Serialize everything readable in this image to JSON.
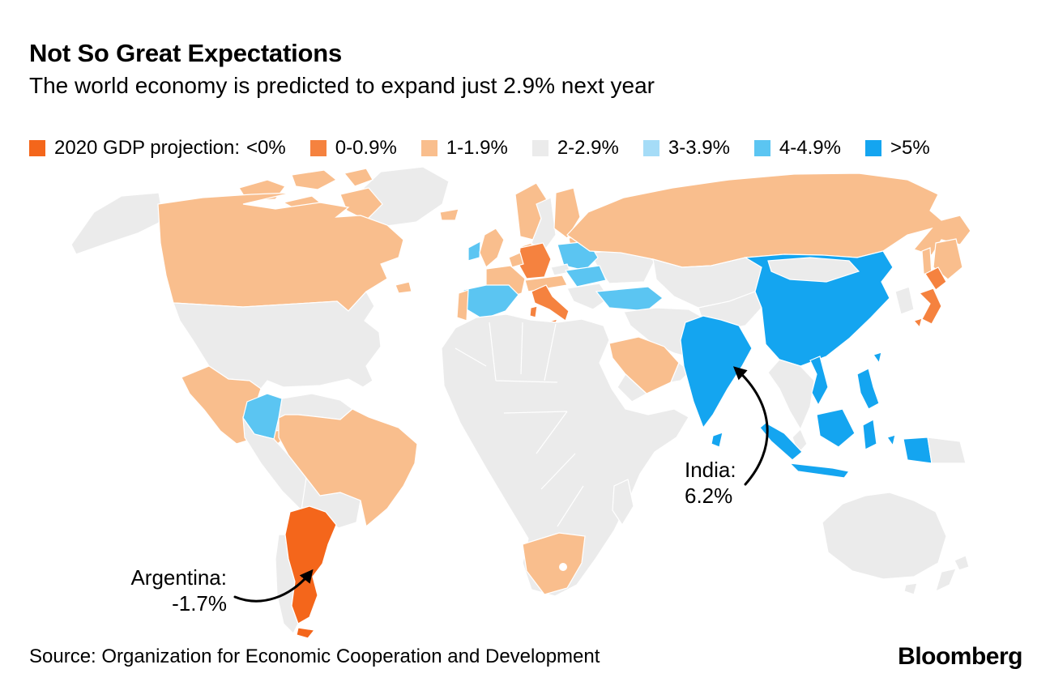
{
  "header": {
    "title": "Not So Great Expectations",
    "subtitle": "The world economy is predicted to expand just 2.9% next year"
  },
  "legend": {
    "prefix": "2020 GDP projection:",
    "items": [
      {
        "label": "<0%",
        "color": "#F4661B"
      },
      {
        "label": "0-0.9%",
        "color": "#F5823F"
      },
      {
        "label": "1-1.9%",
        "color": "#F9BE8D"
      },
      {
        "label": "2-2.9%",
        "color": "#EBEBEB"
      },
      {
        "label": "3-3.9%",
        "color": "#A5DCF7"
      },
      {
        "label": "4-4.9%",
        "color": "#5BC5F2"
      },
      {
        "label": ">5%",
        "color": "#14A5F0"
      }
    ]
  },
  "map": {
    "ocean_color": "#FFFFFF",
    "land_default_color": "#EBEBEB",
    "countries": [
      {
        "id": "argentina",
        "name": "Argentina",
        "category": "<0%"
      },
      {
        "id": "tierra-del-fuego",
        "name": "Tierra del Fuego",
        "category": "<0%"
      },
      {
        "id": "germany",
        "name": "Germany",
        "category": "0-0.9%"
      },
      {
        "id": "italy",
        "name": "Italy",
        "category": "0-0.9%"
      },
      {
        "id": "sicily",
        "name": "Sicily",
        "category": "0-0.9%"
      },
      {
        "id": "sardinia",
        "name": "Sardinia",
        "category": "0-0.9%"
      },
      {
        "id": "japan-north",
        "name": "Japan",
        "category": "0-0.9%"
      },
      {
        "id": "japan-main",
        "name": "Japan",
        "category": "0-0.9%"
      },
      {
        "id": "japan-south",
        "name": "Japan",
        "category": "0-0.9%"
      },
      {
        "id": "canada",
        "name": "Canada",
        "category": "1-1.9%"
      },
      {
        "id": "canada-arctic-1",
        "name": "Canadian Arctic",
        "category": "1-1.9%"
      },
      {
        "id": "canada-arctic-2",
        "name": "Canadian Arctic",
        "category": "1-1.9%"
      },
      {
        "id": "canada-arctic-3",
        "name": "Canadian Arctic",
        "category": "1-1.9%"
      },
      {
        "id": "canada-arctic-4",
        "name": "Canadian Arctic",
        "category": "1-1.9%"
      },
      {
        "id": "canada-arctic-5",
        "name": "Baffin Island",
        "category": "1-1.9%"
      },
      {
        "id": "newfoundland",
        "name": "Newfoundland",
        "category": "1-1.9%"
      },
      {
        "id": "mexico",
        "name": "Mexico",
        "category": "1-1.9%"
      },
      {
        "id": "brazil",
        "name": "Brazil",
        "category": "1-1.9%"
      },
      {
        "id": "russia",
        "name": "Russia",
        "category": "1-1.9%"
      },
      {
        "id": "russia-fareast",
        "name": "Russian Far East",
        "category": "1-1.9%"
      },
      {
        "id": "sakhalin",
        "name": "Sakhalin",
        "category": "1-1.9%"
      },
      {
        "id": "uk",
        "name": "United Kingdom",
        "category": "1-1.9%"
      },
      {
        "id": "france",
        "name": "France",
        "category": "1-1.9%"
      },
      {
        "id": "portugal",
        "name": "Portugal",
        "category": "1-1.9%"
      },
      {
        "id": "norway",
        "name": "Norway",
        "category": "1-1.9%"
      },
      {
        "id": "finland",
        "name": "Finland",
        "category": "1-1.9%"
      },
      {
        "id": "denmark",
        "name": "Denmark",
        "category": "1-1.9%"
      },
      {
        "id": "iceland",
        "name": "Iceland",
        "category": "1-1.9%"
      },
      {
        "id": "benelux",
        "name": "Netherlands & Belgium",
        "category": "1-1.9%"
      },
      {
        "id": "alpine",
        "name": "Switzerland & Austria",
        "category": "1-1.9%"
      },
      {
        "id": "baltics",
        "name": "Baltic states",
        "category": "1-1.9%"
      },
      {
        "id": "saudi-arabia",
        "name": "Saudi Arabia",
        "category": "1-1.9%"
      },
      {
        "id": "south-africa",
        "name": "South Africa",
        "category": "1-1.9%"
      },
      {
        "id": "usa",
        "name": "United States",
        "category": "2-2.9%"
      },
      {
        "id": "alaska",
        "name": "Alaska",
        "category": "2-2.9%"
      },
      {
        "id": "greenland",
        "name": "Greenland",
        "category": "2-2.9%"
      },
      {
        "id": "sweden",
        "name": "Sweden",
        "category": "2-2.9%"
      },
      {
        "id": "czech",
        "name": "Czech Republic",
        "category": "2-2.9%"
      },
      {
        "id": "balkans",
        "name": "Balkans & Greece",
        "category": "2-2.9%"
      },
      {
        "id": "ukraine",
        "name": "Ukraine & Eastern Europe",
        "category": "2-2.9%"
      },
      {
        "id": "central-america",
        "name": "Central America",
        "category": "2-2.9%"
      },
      {
        "id": "cuba",
        "name": "Cuba",
        "category": "2-2.9%"
      },
      {
        "id": "hispaniola",
        "name": "Hispaniola",
        "category": "2-2.9%"
      },
      {
        "id": "venezuela",
        "name": "Venezuela & Guianas",
        "category": "2-2.9%"
      },
      {
        "id": "peru",
        "name": "Ecuador & Peru",
        "category": "2-2.9%"
      },
      {
        "id": "bolivia",
        "name": "Bolivia & Paraguay",
        "category": "2-2.9%"
      },
      {
        "id": "chile",
        "name": "Chile",
        "category": "2-2.9%"
      },
      {
        "id": "africa",
        "name": "Africa (most)",
        "category": "2-2.9%"
      },
      {
        "id": "madagascar",
        "name": "Madagascar",
        "category": "2-2.9%"
      },
      {
        "id": "kazakhstan",
        "name": "Kazakhstan & Central Asia",
        "category": "2-2.9%"
      },
      {
        "id": "middle-east",
        "name": "Middle East",
        "category": "2-2.9%"
      },
      {
        "id": "oman",
        "name": "Oman",
        "category": "2-2.9%"
      },
      {
        "id": "yemen",
        "name": "Yemen",
        "category": "2-2.9%"
      },
      {
        "id": "afghanistan",
        "name": "Afghanistan & Pakistan",
        "category": "2-2.9%"
      },
      {
        "id": "mongolia",
        "name": "Mongolia",
        "category": "2-2.9%"
      },
      {
        "id": "korea",
        "name": "South Korea",
        "category": "2-2.9%"
      },
      {
        "id": "indochina",
        "name": "Myanmar & Thailand",
        "category": "2-2.9%"
      },
      {
        "id": "malay",
        "name": "Malay Peninsula",
        "category": "2-2.9%"
      },
      {
        "id": "png",
        "name": "Papua New Guinea",
        "category": "2-2.9%"
      },
      {
        "id": "australia",
        "name": "Australia",
        "category": "2-2.9%"
      },
      {
        "id": "tasmania",
        "name": "Tasmania",
        "category": "2-2.9%"
      },
      {
        "id": "nz-north",
        "name": "New Zealand",
        "category": "2-2.9%"
      },
      {
        "id": "nz-south",
        "name": "New Zealand",
        "category": "2-2.9%"
      },
      {
        "id": "spain",
        "name": "Spain",
        "category": "4-4.9%"
      },
      {
        "id": "ireland",
        "name": "Ireland",
        "category": "4-4.9%"
      },
      {
        "id": "poland",
        "name": "Poland",
        "category": "4-4.9%"
      },
      {
        "id": "hungary",
        "name": "Hungary & Slovakia",
        "category": "4-4.9%"
      },
      {
        "id": "turkey",
        "name": "Turkey",
        "category": "4-4.9%"
      },
      {
        "id": "colombia",
        "name": "Colombia",
        "category": "4-4.9%"
      },
      {
        "id": "china",
        "name": "China",
        "category": ">5%"
      },
      {
        "id": "taiwan",
        "name": "Taiwan",
        "category": ">5%"
      },
      {
        "id": "india",
        "name": "India",
        "category": ">5%"
      },
      {
        "id": "sri-lanka",
        "name": "Sri Lanka",
        "category": ">5%"
      },
      {
        "id": "vietnam",
        "name": "Vietnam",
        "category": ">5%"
      },
      {
        "id": "sumatra",
        "name": "Indonesia (Sumatra)",
        "category": ">5%"
      },
      {
        "id": "java",
        "name": "Indonesia (Java)",
        "category": ">5%"
      },
      {
        "id": "borneo",
        "name": "Indonesia (Borneo)",
        "category": ">5%"
      },
      {
        "id": "sulawesi",
        "name": "Indonesia (Sulawesi)",
        "category": ">5%"
      },
      {
        "id": "moluccas",
        "name": "Indonesia (Moluccas)",
        "category": ">5%"
      },
      {
        "id": "west-papua",
        "name": "Indonesia (West Papua)",
        "category": ">5%"
      },
      {
        "id": "philippines",
        "name": "Philippines",
        "category": ">5%"
      }
    ]
  },
  "annotations": {
    "argentina": {
      "line1": "Argentina:",
      "line2": "-1.7%"
    },
    "india": {
      "line1": "India:",
      "line2": "6.2%"
    }
  },
  "footer": {
    "source": "Source: Organization for Economic Cooperation and Development",
    "brand": "Bloomberg"
  },
  "chart_data": {
    "type": "heatmap",
    "subtype": "choropleth-world-map",
    "title": "Not So Great Expectations",
    "subtitle": "The world economy is predicted to expand just 2.9% next year",
    "legend_title": "2020 GDP projection:",
    "legend_position": "top",
    "bins": [
      "<0%",
      "0-0.9%",
      "1-1.9%",
      "2-2.9%",
      "3-3.9%",
      "4-4.9%",
      ">5%"
    ],
    "bin_colors": [
      "#F4661B",
      "#F5823F",
      "#F9BE8D",
      "#EBEBEB",
      "#A5DCF7",
      "#5BC5F2",
      "#14A5F0"
    ],
    "values": [
      {
        "country": "Argentina",
        "bin": "<0%",
        "value_label": "-1.7%"
      },
      {
        "country": "India",
        "bin": ">5%",
        "value_label": "6.2%"
      },
      {
        "country": "Germany",
        "bin": "0-0.9%"
      },
      {
        "country": "Italy",
        "bin": "0-0.9%"
      },
      {
        "country": "Japan",
        "bin": "0-0.9%"
      },
      {
        "country": "Canada",
        "bin": "1-1.9%"
      },
      {
        "country": "Mexico",
        "bin": "1-1.9%"
      },
      {
        "country": "Brazil",
        "bin": "1-1.9%"
      },
      {
        "country": "Russia",
        "bin": "1-1.9%"
      },
      {
        "country": "United Kingdom",
        "bin": "1-1.9%"
      },
      {
        "country": "France",
        "bin": "1-1.9%"
      },
      {
        "country": "Portugal",
        "bin": "1-1.9%"
      },
      {
        "country": "Norway",
        "bin": "1-1.9%"
      },
      {
        "country": "Finland",
        "bin": "1-1.9%"
      },
      {
        "country": "Iceland",
        "bin": "1-1.9%"
      },
      {
        "country": "Saudi Arabia",
        "bin": "1-1.9%"
      },
      {
        "country": "South Africa",
        "bin": "1-1.9%"
      },
      {
        "country": "United States",
        "bin": "2-2.9%"
      },
      {
        "country": "Sweden",
        "bin": "2-2.9%"
      },
      {
        "country": "Chile",
        "bin": "2-2.9%"
      },
      {
        "country": "Australia",
        "bin": "2-2.9%"
      },
      {
        "country": "Spain",
        "bin": "4-4.9%"
      },
      {
        "country": "Ireland",
        "bin": "4-4.9%"
      },
      {
        "country": "Poland",
        "bin": "4-4.9%"
      },
      {
        "country": "Hungary",
        "bin": "4-4.9%"
      },
      {
        "country": "Turkey",
        "bin": "4-4.9%"
      },
      {
        "country": "Colombia",
        "bin": "4-4.9%"
      },
      {
        "country": "China",
        "bin": ">5%"
      },
      {
        "country": "Indonesia",
        "bin": ">5%"
      },
      {
        "country": "Philippines",
        "bin": ">5%"
      }
    ],
    "annotations": [
      {
        "text": "Argentina: -1.7%",
        "target": "Argentina"
      },
      {
        "text": "India: 6.2%",
        "target": "India"
      }
    ],
    "source": "Source: Organization for Economic Cooperation and Development",
    "credit": "Bloomberg"
  }
}
